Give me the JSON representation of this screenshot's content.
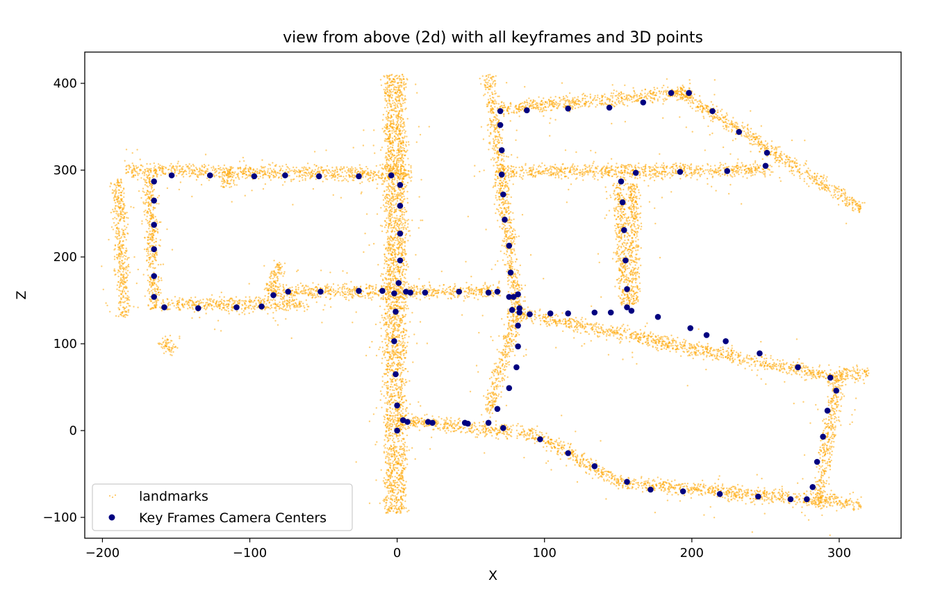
{
  "chart_data": {
    "type": "scatter",
    "title": "view from above (2d) with all keyframes and 3D points",
    "xlabel": "X",
    "ylabel": "Z",
    "xlim": [
      -212,
      342
    ],
    "ylim": [
      -124,
      436
    ],
    "xticks": [
      -200,
      -100,
      0,
      100,
      200,
      300
    ],
    "yticks": [
      -100,
      0,
      100,
      200,
      300,
      400
    ],
    "grid": false,
    "legend_position": "lower-left",
    "series": [
      {
        "name": "landmarks",
        "color": "#FFA500",
        "marker": "tiny-point",
        "structure_segments": [
          {
            "from": [
              -185,
              300
            ],
            "to": [
              10,
              295
            ]
          },
          {
            "from": [
              -190,
              290
            ],
            "to": [
              -185,
              130
            ]
          },
          {
            "from": [
              -168,
              295
            ],
            "to": [
              -165,
              140
            ]
          },
          {
            "from": [
              -160,
              145
            ],
            "to": [
              -60,
              145
            ]
          },
          {
            "from": [
              -90,
              160
            ],
            "to": [
              70,
              160
            ]
          },
          {
            "from": [
              -5,
              410
            ],
            "to": [
              -5,
              -95
            ]
          },
          {
            "from": [
              2,
              410
            ],
            "to": [
              2,
              -95
            ]
          },
          {
            "from": [
              62,
              410
            ],
            "to": [
              82,
              130
            ]
          },
          {
            "from": [
              70,
              370
            ],
            "to": [
              200,
              390
            ]
          },
          {
            "from": [
              190,
              392
            ],
            "to": [
              315,
              255
            ]
          },
          {
            "from": [
              70,
              298
            ],
            "to": [
              255,
              300
            ]
          },
          {
            "from": [
              150,
              285
            ],
            "to": [
              155,
              145
            ]
          },
          {
            "from": [
              160,
              285
            ],
            "to": [
              160,
              145
            ]
          },
          {
            "from": [
              75,
              138
            ],
            "to": [
              300,
              60
            ]
          },
          {
            "from": [
              80,
              130
            ],
            "to": [
              62,
              20
            ]
          },
          {
            "from": [
              0,
              12
            ],
            "to": [
              95,
              -5
            ]
          },
          {
            "from": [
              95,
              -5
            ],
            "to": [
              150,
              -60
            ]
          },
          {
            "from": [
              150,
              -60
            ],
            "to": [
              315,
              -85
            ]
          },
          {
            "from": [
              300,
              65
            ],
            "to": [
              285,
              -90
            ]
          },
          {
            "from": [
              300,
              65
            ],
            "to": [
              320,
              65
            ]
          },
          {
            "from": [
              -160,
              105
            ],
            "to": [
              -150,
              90
            ]
          },
          {
            "from": [
              -80,
              195
            ],
            "to": [
              -85,
              160
            ]
          },
          {
            "from": [
              -115,
              300
            ],
            "to": [
              -115,
              280
            ]
          }
        ]
      },
      {
        "name": "Key Frames Camera Centers",
        "color": "#000080",
        "marker": "circle",
        "points": [
          [
            -165,
            287
          ],
          [
            -165,
            265
          ],
          [
            -165,
            237
          ],
          [
            -165,
            209
          ],
          [
            -165,
            178
          ],
          [
            -165,
            154
          ],
          [
            -158,
            142
          ],
          [
            -153,
            294
          ],
          [
            -127,
            294
          ],
          [
            -97,
            293
          ],
          [
            -76,
            294
          ],
          [
            -53,
            293
          ],
          [
            -26,
            293
          ],
          [
            -4,
            294
          ],
          [
            2,
            283
          ],
          [
            2,
            259
          ],
          [
            2,
            227
          ],
          [
            2,
            196
          ],
          [
            1,
            170
          ],
          [
            -1,
            137
          ],
          [
            -2,
            103
          ],
          [
            -1,
            65
          ],
          [
            0,
            29
          ],
          [
            0,
            0
          ],
          [
            4,
            12
          ],
          [
            7,
            10
          ],
          [
            -10,
            161
          ],
          [
            -2,
            158
          ],
          [
            6,
            160
          ],
          [
            9,
            159
          ],
          [
            19,
            159
          ],
          [
            42,
            160
          ],
          [
            62,
            159
          ],
          [
            68,
            160
          ],
          [
            -135,
            141
          ],
          [
            -109,
            142
          ],
          [
            -92,
            143
          ],
          [
            -84,
            156
          ],
          [
            -74,
            160
          ],
          [
            -52,
            160
          ],
          [
            -26,
            161
          ],
          [
            70,
            368
          ],
          [
            70,
            352
          ],
          [
            71,
            323
          ],
          [
            71,
            295
          ],
          [
            72,
            272
          ],
          [
            73,
            243
          ],
          [
            76,
            213
          ],
          [
            77,
            182
          ],
          [
            76,
            154
          ],
          [
            79,
            154
          ],
          [
            78,
            139
          ],
          [
            82,
            157
          ],
          [
            83,
            141
          ],
          [
            83,
            136
          ],
          [
            82,
            121
          ],
          [
            82,
            97
          ],
          [
            81,
            73
          ],
          [
            76,
            49
          ],
          [
            68,
            25
          ],
          [
            88,
            369
          ],
          [
            116,
            371
          ],
          [
            144,
            372
          ],
          [
            167,
            378
          ],
          [
            186,
            389
          ],
          [
            198,
            389
          ],
          [
            214,
            368
          ],
          [
            232,
            344
          ],
          [
            251,
            320
          ],
          [
            250,
            305
          ],
          [
            224,
            299
          ],
          [
            192,
            298
          ],
          [
            162,
            297
          ],
          [
            152,
            287
          ],
          [
            153,
            263
          ],
          [
            154,
            231
          ],
          [
            155,
            196
          ],
          [
            156,
            163
          ],
          [
            156,
            142
          ],
          [
            159,
            138
          ],
          [
            90,
            134
          ],
          [
            104,
            135
          ],
          [
            116,
            135
          ],
          [
            134,
            136
          ],
          [
            145,
            136
          ],
          [
            177,
            131
          ],
          [
            199,
            118
          ],
          [
            210,
            110
          ],
          [
            223,
            103
          ],
          [
            246,
            89
          ],
          [
            272,
            73
          ],
          [
            294,
            61
          ],
          [
            298,
            46
          ],
          [
            292,
            23
          ],
          [
            289,
            -7
          ],
          [
            285,
            -36
          ],
          [
            282,
            -65
          ],
          [
            278,
            -79
          ],
          [
            267,
            -79
          ],
          [
            245,
            -76
          ],
          [
            219,
            -73
          ],
          [
            194,
            -70
          ],
          [
            172,
            -68
          ],
          [
            156,
            -59
          ],
          [
            134,
            -41
          ],
          [
            116,
            -26
          ],
          [
            97,
            -10
          ],
          [
            72,
            3
          ],
          [
            62,
            9
          ],
          [
            48,
            8
          ],
          [
            46,
            9
          ],
          [
            24,
            9
          ],
          [
            21,
            10
          ]
        ]
      }
    ]
  }
}
